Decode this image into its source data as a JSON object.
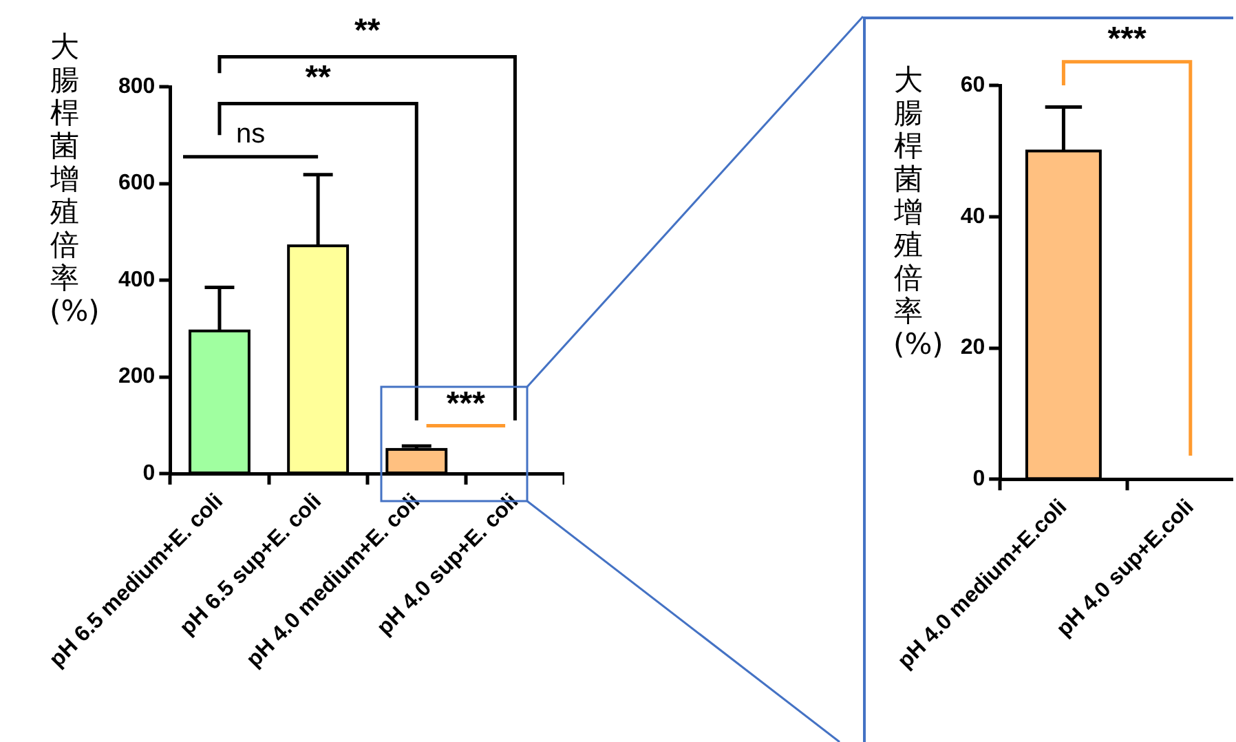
{
  "chart_data": [
    {
      "type": "bar",
      "ylabel": "大腸桿菌增殖倍率(%)",
      "categories": [
        "pH 6.5 medium+E. coli",
        "pH 6.5 sup+E. coli",
        "pH 4.0 medium+E. coli",
        "pH 4.0 sup+E. coli"
      ],
      "values": [
        295,
        471,
        50,
        0
      ],
      "colors": [
        "#a0ffa0",
        "#ffff99",
        "#ffc080",
        "#ffc080"
      ],
      "errors": [
        90,
        147,
        7,
        null
      ],
      "ylim": [
        0,
        800
      ],
      "yticks": [
        0,
        200,
        400,
        600,
        800
      ],
      "annotations": [
        "ns",
        "**",
        "**",
        "***"
      ]
    },
    {
      "type": "bar",
      "ylabel": "大腸桿菌增殖倍率(%)",
      "categories": [
        "pH 4.0 medium+E.coli",
        "pH 4.0 sup+E.coli"
      ],
      "values": [
        50,
        0
      ],
      "colors": [
        "#ffc080",
        "#ffc080"
      ],
      "errors": [
        6.7,
        null
      ],
      "ylim": [
        0,
        60
      ],
      "yticks": [
        0,
        20,
        40,
        60
      ],
      "annotations": [
        "***"
      ]
    }
  ]
}
